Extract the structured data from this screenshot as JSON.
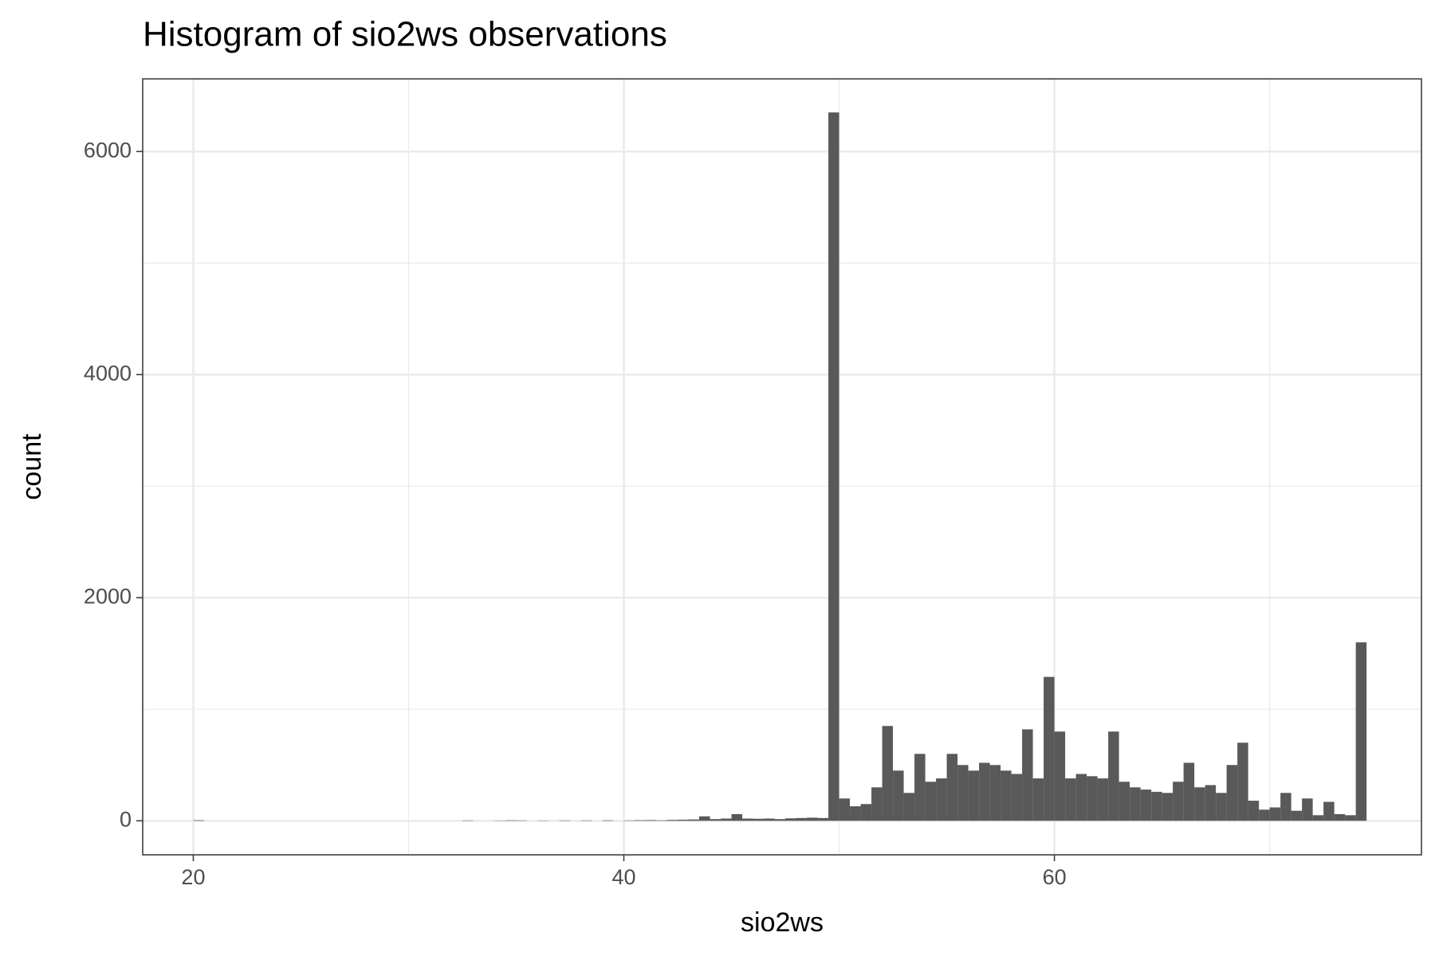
{
  "chart_data": {
    "type": "histogram",
    "title": "Histogram of sio2ws observations",
    "x_label": "sio2ws",
    "y_label": "count",
    "color": "#595959",
    "grid": true,
    "bins": [
      20,
      20.5,
      21,
      21.5,
      22,
      22.5,
      23,
      23.5,
      24,
      24.5,
      25,
      25.5,
      26,
      26.5,
      27,
      27.5,
      28,
      28.5,
      29,
      29.5,
      30,
      30.5,
      31,
      31.5,
      32,
      32.5,
      33,
      33.5,
      34,
      34.5,
      35,
      35.5,
      36,
      36.5,
      37,
      37.5,
      38,
      38.5,
      39,
      39.5,
      40,
      40.5,
      41,
      41.5,
      42,
      42.5,
      43,
      43.5,
      44,
      44.5,
      45,
      45.5,
      46,
      46.5,
      47,
      47.5,
      48,
      48.5,
      49,
      49.5,
      50,
      50.5,
      51,
      51.5,
      52,
      52.5,
      53,
      53.5,
      54,
      54.5,
      55,
      55.5,
      56,
      56.5,
      57,
      57.5,
      58,
      58.5,
      59,
      59.5,
      60,
      60.5,
      61,
      61.5,
      62,
      62.5,
      63,
      63.5,
      64,
      64.5,
      65,
      65.5,
      66,
      66.5,
      67,
      67.5,
      68,
      68.5,
      69,
      69.5,
      70,
      70.5,
      71,
      71.5,
      72,
      72.5,
      73,
      73.5,
      74,
      74.5
    ],
    "counts": [
      5,
      0,
      0,
      0,
      0,
      0,
      0,
      0,
      0,
      0,
      0,
      0,
      0,
      0,
      0,
      0,
      0,
      0,
      0,
      0,
      0,
      0,
      0,
      0,
      0,
      3,
      0,
      0,
      2,
      4,
      3,
      0,
      2,
      0,
      3,
      0,
      3,
      0,
      4,
      0,
      3,
      5,
      6,
      4,
      8,
      10,
      12,
      40,
      15,
      20,
      60,
      20,
      18,
      20,
      15,
      22,
      25,
      28,
      25,
      6350,
      200,
      130,
      150,
      300,
      850,
      450,
      250,
      600,
      350,
      380,
      600,
      500,
      450,
      520,
      500,
      450,
      420,
      820,
      380,
      1290,
      800,
      380,
      420,
      400,
      380,
      800,
      350,
      300,
      280,
      260,
      250,
      350,
      520,
      300,
      320,
      250,
      500,
      700,
      180,
      100,
      120,
      250,
      90,
      200,
      50,
      170,
      60,
      50,
      1600
    ],
    "xlim": [
      17.65,
      77.05
    ],
    "xticks": [
      20,
      40,
      60
    ],
    "x_minor_ticks": [
      30,
      50,
      70
    ],
    "ylim": [
      -305,
      6651
    ],
    "yticks": [
      0,
      2000,
      4000,
      6000
    ],
    "y_minor_ticks": [
      1000,
      3000,
      5000
    ]
  }
}
